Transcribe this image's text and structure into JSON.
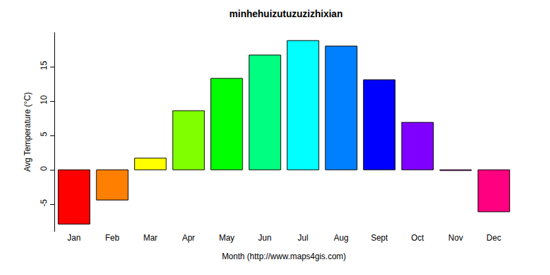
{
  "chart_data": {
    "type": "bar",
    "title": "minhehuizutuzuzizhixian",
    "x_label": "Month (http://www.maps4gis.com)",
    "y_label": "Avg Temperature (°C)",
    "categories": [
      "Jan",
      "Feb",
      "Mar",
      "Apr",
      "May",
      "Jun",
      "Jul",
      "Aug",
      "Sept",
      "Oct",
      "Nov",
      "Dec"
    ],
    "values": [
      -7.9,
      -4.4,
      1.7,
      8.6,
      13.3,
      16.7,
      18.8,
      18.0,
      13.1,
      6.9,
      -0.1,
      -6.1
    ],
    "colors": [
      "#FF0000",
      "#FF8000",
      "#FFFF00",
      "#80FF00",
      "#00FF00",
      "#00FF80",
      "#00FFFF",
      "#0080FF",
      "#0000FF",
      "#8000FF",
      "#FF00FF",
      "#FF0080"
    ],
    "ylim": [
      -9,
      20
    ],
    "yticks": [
      -5,
      0,
      5,
      10,
      15
    ],
    "grid": false
  }
}
